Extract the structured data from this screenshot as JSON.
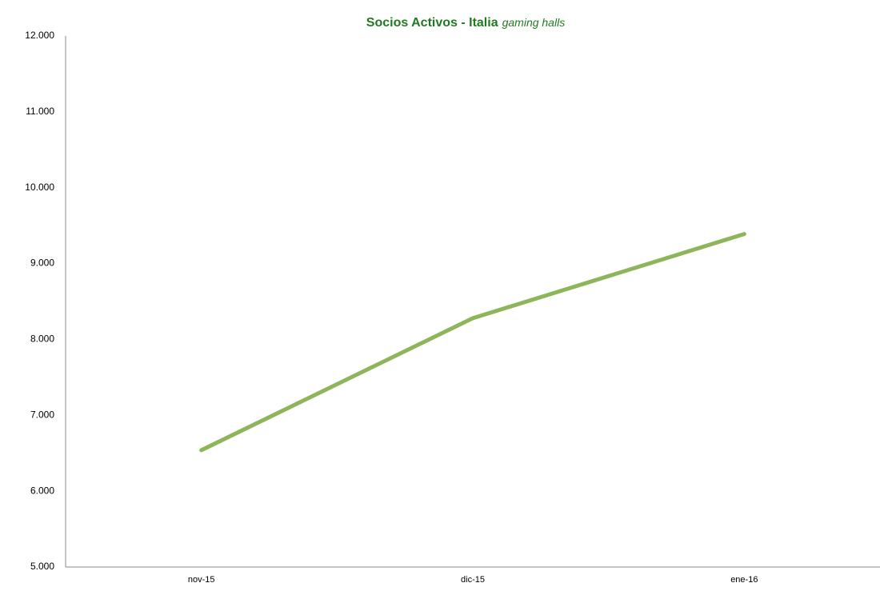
{
  "chart_data": {
    "type": "line",
    "title": "Socios Activos - Italia",
    "subtitle": "gaming halls",
    "categories": [
      "nov-15",
      "dic-15",
      "ene-16"
    ],
    "series": [
      {
        "name": "Socios Activos",
        "color": "#8db55a",
        "values": [
          6540,
          8280,
          9390
        ]
      }
    ],
    "ylim": [
      5000,
      12000
    ],
    "yticks": [
      {
        "value": 5000,
        "label": "5.000"
      },
      {
        "value": 6000,
        "label": "6.000"
      },
      {
        "value": 7000,
        "label": "7.000"
      },
      {
        "value": 8000,
        "label": "8.000"
      },
      {
        "value": 9000,
        "label": "9.000"
      },
      {
        "value": 10000,
        "label": "10.000"
      },
      {
        "value": 11000,
        "label": "11.000"
      },
      {
        "value": 12000,
        "label": "12.000"
      }
    ],
    "grid": false
  }
}
